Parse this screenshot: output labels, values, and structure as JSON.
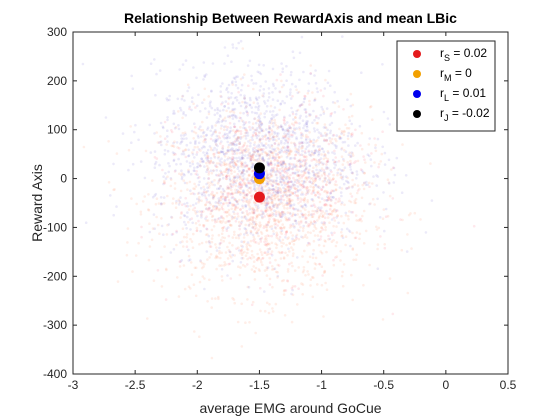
{
  "chart_data": {
    "type": "scatter",
    "title": "Relationship Between RewardAxis and mean LBic",
    "xlabel": "average EMG around GoCue",
    "ylabel": "Reward Axis",
    "xlim": [
      -3,
      0.5
    ],
    "ylim": [
      -400,
      300
    ],
    "xticks": [
      -3,
      -2.5,
      -2,
      -1.5,
      -1,
      -0.5,
      0,
      0.5
    ],
    "yticks": [
      -400,
      -300,
      -200,
      -100,
      0,
      100,
      200,
      300
    ],
    "xtick_labels": [
      "-3",
      "-2.5",
      "-2",
      "-1.5",
      "-1",
      "-0.5",
      "0",
      "0.5"
    ],
    "ytick_labels": [
      "-400",
      "-300",
      "-200",
      "-100",
      "0",
      "100",
      "200",
      "300"
    ],
    "grid": false,
    "legend_position": "top-right",
    "background_clouds": [
      {
        "color": "#ff7f50",
        "center": [
          -1.45,
          -45
        ],
        "spread": [
          0.42,
          95
        ],
        "count": 1600
      },
      {
        "color": "#6a5acd",
        "center": [
          -1.5,
          45
        ],
        "spread": [
          0.42,
          90
        ],
        "count": 1500
      },
      {
        "color": "#ff4f6a",
        "center": [
          -1.4,
          -20
        ],
        "spread": [
          0.38,
          85
        ],
        "count": 500
      }
    ],
    "series": [
      {
        "name": "r_S = 0.02",
        "label_main": "r",
        "label_sub": "S",
        "label_rest": " = 0.02",
        "color": "#e41a1c",
        "x": -1.5,
        "y": -38
      },
      {
        "name": "r_M = 0",
        "label_main": "r",
        "label_sub": "M",
        "label_rest": " = 0",
        "color": "#f2a000",
        "x": -1.5,
        "y": 0
      },
      {
        "name": "r_L = 0.01",
        "label_main": "r",
        "label_sub": "L",
        "label_rest": " = 0.01",
        "color": "#0000ee",
        "x": -1.5,
        "y": 10
      },
      {
        "name": "r_J = -0.02",
        "label_main": "r",
        "label_sub": "J",
        "label_rest": " = -0.02",
        "color": "#000000",
        "x": -1.5,
        "y": 22
      }
    ],
    "legend_order": [
      0,
      1,
      2,
      3
    ]
  }
}
